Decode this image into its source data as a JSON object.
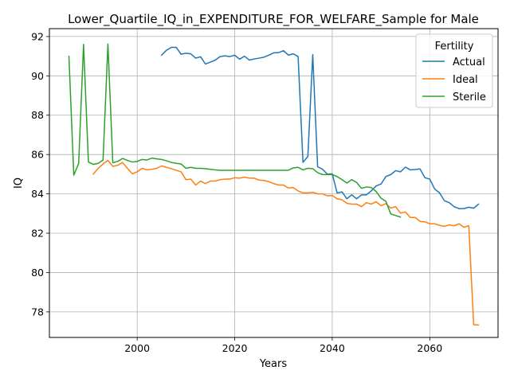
{
  "chart_data": {
    "type": "line",
    "title": "Lower_Quartile_IQ_in_EXPENDITURE_FOR_WELFARE_Sample for Male",
    "xlabel": "Years",
    "ylabel": "IQ",
    "xlim": [
      1982,
      2074
    ],
    "ylim": [
      76.7,
      92.4
    ],
    "xticks": [
      2000,
      2020,
      2040,
      2060
    ],
    "yticks": [
      78,
      80,
      82,
      84,
      86,
      88,
      90,
      92
    ],
    "grid": true,
    "legend": {
      "title": "Fertility",
      "position": "top-right"
    },
    "series": [
      {
        "name": "Actual",
        "color": "#1f77b4",
        "x": [
          2005,
          2006,
          2007,
          2008,
          2009,
          2010,
          2011,
          2012,
          2013,
          2014,
          2015,
          2016,
          2017,
          2018,
          2019,
          2020,
          2021,
          2022,
          2023,
          2024,
          2025,
          2026,
          2027,
          2028,
          2029,
          2030,
          2031,
          2032,
          2033,
          2034,
          2035,
          2036,
          2037,
          2038,
          2039,
          2040,
          2041,
          2042,
          2043,
          2044,
          2045,
          2046,
          2047,
          2048,
          2049,
          2050,
          2051,
          2052,
          2053,
          2054,
          2055,
          2056,
          2057,
          2058,
          2059,
          2060,
          2061,
          2062,
          2063,
          2064,
          2065,
          2066,
          2067,
          2068,
          2069,
          2070
        ],
        "y": [
          91.05,
          91.3,
          91.45,
          91.45,
          91.1,
          91.15,
          91.12,
          90.9,
          90.97,
          90.6,
          90.7,
          90.8,
          90.98,
          91.02,
          90.98,
          91.05,
          90.85,
          91.0,
          90.8,
          90.86,
          90.9,
          90.95,
          91.05,
          91.17,
          91.18,
          91.28,
          91.05,
          91.12,
          90.98,
          85.6,
          85.9,
          91.08,
          85.38,
          85.25,
          85.0,
          85.02,
          84.05,
          84.1,
          83.75,
          83.95,
          83.75,
          83.95,
          83.95,
          84.15,
          84.4,
          84.5,
          84.88,
          84.98,
          85.18,
          85.12,
          85.36,
          85.22,
          85.24,
          85.27,
          84.82,
          84.75,
          84.25,
          84.05,
          83.65,
          83.55,
          83.35,
          83.25,
          83.25,
          83.32,
          83.27,
          83.48
        ]
      },
      {
        "name": "Ideal",
        "color": "#ff7f0e",
        "x": [
          1991,
          1992,
          1993,
          1994,
          1995,
          1996,
          1997,
          1998,
          1999,
          2000,
          2001,
          2002,
          2003,
          2004,
          2005,
          2006,
          2007,
          2008,
          2009,
          2010,
          2011,
          2012,
          2013,
          2014,
          2015,
          2016,
          2017,
          2018,
          2019,
          2020,
          2021,
          2022,
          2023,
          2024,
          2025,
          2026,
          2027,
          2028,
          2029,
          2030,
          2031,
          2032,
          2033,
          2034,
          2035,
          2036,
          2037,
          2038,
          2039,
          2040,
          2041,
          2042,
          2043,
          2044,
          2045,
          2046,
          2047,
          2048,
          2049,
          2050,
          2051,
          2052,
          2053,
          2054,
          2055,
          2056,
          2057,
          2058,
          2059,
          2060,
          2061,
          2062,
          2063,
          2064,
          2065,
          2066,
          2067,
          2068,
          2069,
          2070
        ],
        "y": [
          85.0,
          85.3,
          85.52,
          85.7,
          85.4,
          85.45,
          85.6,
          85.3,
          85.02,
          85.12,
          85.3,
          85.22,
          85.25,
          85.3,
          85.42,
          85.35,
          85.28,
          85.2,
          85.12,
          84.72,
          84.75,
          84.45,
          84.65,
          84.52,
          84.65,
          84.65,
          84.72,
          84.75,
          84.75,
          84.82,
          84.8,
          84.85,
          84.8,
          84.8,
          84.7,
          84.68,
          84.62,
          84.52,
          84.45,
          84.45,
          84.3,
          84.32,
          84.15,
          84.05,
          84.05,
          84.08,
          84.0,
          84.0,
          83.9,
          83.92,
          83.75,
          83.7,
          83.52,
          83.48,
          83.48,
          83.35,
          83.55,
          83.48,
          83.6,
          83.4,
          83.5,
          83.28,
          83.35,
          83.02,
          83.08,
          82.8,
          82.8,
          82.6,
          82.58,
          82.48,
          82.48,
          82.4,
          82.35,
          82.42,
          82.38,
          82.48,
          82.3,
          82.38,
          77.35,
          77.33
        ]
      },
      {
        "name": "Sterile",
        "color": "#2ca02c",
        "x": [
          1986,
          1987,
          1988,
          1989,
          1990,
          1991,
          1992,
          1993,
          1994,
          1995,
          1996,
          1997,
          1998,
          1999,
          2000,
          2001,
          2002,
          2003,
          2004,
          2005,
          2006,
          2007,
          2008,
          2009,
          2010,
          2011,
          2012,
          2013,
          2014,
          2015,
          2016,
          2017,
          2018,
          2019,
          2020,
          2021,
          2022,
          2023,
          2024,
          2025,
          2026,
          2027,
          2028,
          2029,
          2030,
          2031,
          2032,
          2033,
          2034,
          2035,
          2036,
          2037,
          2038,
          2039,
          2040,
          2041,
          2042,
          2043,
          2044,
          2045,
          2046,
          2047,
          2048,
          2049,
          2050,
          2051,
          2052,
          2053,
          2054
        ],
        "y": [
          91.0,
          84.95,
          85.55,
          91.6,
          85.62,
          85.5,
          85.55,
          85.72,
          91.62,
          85.58,
          85.65,
          85.8,
          85.7,
          85.62,
          85.65,
          85.75,
          85.72,
          85.82,
          85.78,
          85.75,
          85.68,
          85.6,
          85.55,
          85.52,
          85.3,
          85.35,
          85.3,
          85.3,
          85.28,
          85.25,
          85.22,
          85.2,
          85.2,
          85.2,
          85.2,
          85.2,
          85.2,
          85.2,
          85.2,
          85.2,
          85.2,
          85.2,
          85.2,
          85.2,
          85.2,
          85.2,
          85.32,
          85.35,
          85.22,
          85.3,
          85.28,
          85.08,
          84.98,
          84.98,
          84.98,
          84.88,
          84.72,
          84.55,
          84.72,
          84.58,
          84.28,
          84.35,
          84.32,
          84.12,
          83.78,
          83.62,
          82.98,
          82.9,
          82.82
        ]
      }
    ]
  }
}
